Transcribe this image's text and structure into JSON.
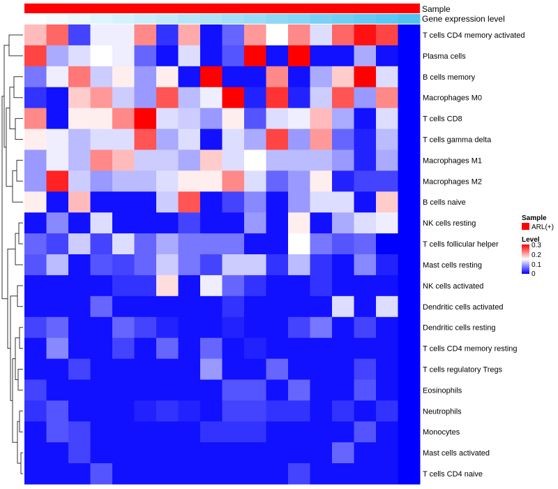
{
  "chart_data": {
    "type": "heatmap",
    "title": "",
    "xlabel": "",
    "ylabel": "",
    "n_samples": 18,
    "annotation_tracks": [
      {
        "name": "Sample",
        "color": "#ff0000"
      },
      {
        "name": "Gene expression level",
        "colors": [
          "#ffffff",
          "#52c3f1"
        ]
      }
    ],
    "rows": [
      {
        "label": "T cells CD4 memory activated",
        "values": [
          0.19,
          0.24,
          0.04,
          0.14,
          0.14,
          0.22,
          0.03,
          0.2,
          0.01,
          0.06,
          0.21,
          0.15,
          0.22,
          0.13,
          0.24,
          0.29,
          0.26,
          0.0
        ]
      },
      {
        "label": "Plasma cells",
        "values": [
          0.26,
          0.1,
          0.13,
          0.15,
          0.14,
          0.06,
          0.01,
          0.13,
          0.01,
          0.05,
          0.3,
          0.01,
          0.3,
          0.01,
          0.01,
          0.1,
          0.01,
          0.0
        ]
      },
      {
        "label": "B cells memory",
        "values": [
          0.07,
          0.14,
          0.23,
          0.12,
          0.16,
          0.09,
          0.16,
          0.01,
          0.3,
          0.01,
          0.01,
          0.22,
          0.01,
          0.1,
          0.18,
          0.3,
          0.13,
          0.0
        ]
      },
      {
        "label": "Macrophages M0",
        "values": [
          0.03,
          0.01,
          0.18,
          0.21,
          0.12,
          0.09,
          0.25,
          0.11,
          0.14,
          0.3,
          0.02,
          0.27,
          0.02,
          0.12,
          0.25,
          0.09,
          0.22,
          0.0
        ]
      },
      {
        "label": "T cells CD8",
        "values": [
          0.22,
          0.01,
          0.16,
          0.16,
          0.22,
          0.3,
          0.13,
          0.12,
          0.09,
          0.16,
          0.05,
          0.13,
          0.14,
          0.19,
          0.1,
          0.01,
          0.13,
          0.0
        ]
      },
      {
        "label": "T cells gamma delta",
        "values": [
          0.16,
          0.14,
          0.11,
          0.13,
          0.13,
          0.25,
          0.1,
          0.13,
          0.01,
          0.13,
          0.1,
          0.26,
          0.09,
          0.21,
          0.06,
          0.02,
          0.11,
          0.0
        ]
      },
      {
        "label": "Macrophages M1",
        "values": [
          0.09,
          0.14,
          0.11,
          0.22,
          0.19,
          0.12,
          0.12,
          0.1,
          0.18,
          0.13,
          0.15,
          0.11,
          0.11,
          0.11,
          0.09,
          0.02,
          0.1,
          0.0
        ]
      },
      {
        "label": "Macrophages M2",
        "values": [
          0.09,
          0.28,
          0.12,
          0.09,
          0.11,
          0.11,
          0.13,
          0.16,
          0.16,
          0.22,
          0.13,
          0.06,
          0.09,
          0.16,
          0.02,
          0.04,
          0.04,
          0.0
        ]
      },
      {
        "label": "B cells naive",
        "values": [
          0.16,
          0.01,
          0.19,
          0.01,
          0.01,
          0.01,
          0.12,
          0.25,
          0.01,
          0.04,
          0.08,
          0.01,
          0.09,
          0.13,
          0.13,
          0.01,
          0.18,
          0.0
        ]
      },
      {
        "label": "NK cells resting",
        "values": [
          0.01,
          0.08,
          0.01,
          0.13,
          0.01,
          0.01,
          0.01,
          0.04,
          0.01,
          0.01,
          0.09,
          0.01,
          0.16,
          0.01,
          0.1,
          0.13,
          0.14,
          0.0
        ]
      },
      {
        "label": "T cells follicular helper",
        "values": [
          0.06,
          0.04,
          0.12,
          0.04,
          0.13,
          0.06,
          0.1,
          0.07,
          0.07,
          0.07,
          0.01,
          0.01,
          0.15,
          0.07,
          0.05,
          0.06,
          0.0,
          0.0
        ]
      },
      {
        "label": "Mast cells resting",
        "values": [
          0.05,
          0.11,
          0.01,
          0.05,
          0.04,
          0.06,
          0.12,
          0.07,
          0.04,
          0.12,
          0.12,
          0.03,
          0.11,
          0.03,
          0.01,
          0.08,
          0.02,
          0.0
        ]
      },
      {
        "label": "NK cells activated",
        "values": [
          0.01,
          0.01,
          0.01,
          0.01,
          0.03,
          0.03,
          0.17,
          0.01,
          0.14,
          0.06,
          0.03,
          0.01,
          0.01,
          0.03,
          0.01,
          0.01,
          0.01,
          0.0
        ]
      },
      {
        "label": "Dendritic cells activated",
        "values": [
          0.01,
          0.01,
          0.01,
          0.06,
          0.01,
          0.01,
          0.01,
          0.01,
          0.01,
          0.03,
          0.01,
          0.01,
          0.01,
          0.01,
          0.13,
          0.01,
          0.13,
          0.0
        ]
      },
      {
        "label": "Dendritic cells resting",
        "values": [
          0.04,
          0.06,
          0.01,
          0.01,
          0.06,
          0.04,
          0.02,
          0.01,
          0.01,
          0.02,
          0.01,
          0.01,
          0.04,
          0.07,
          0.01,
          0.04,
          0.01,
          0.0
        ]
      },
      {
        "label": "T cells CD4 memory resting",
        "values": [
          0.01,
          0.08,
          0.01,
          0.01,
          0.04,
          0.01,
          0.06,
          0.01,
          0.06,
          0.01,
          0.02,
          0.01,
          0.01,
          0.01,
          0.01,
          0.01,
          0.01,
          0.0
        ]
      },
      {
        "label": "T cells regulatory  Tregs",
        "values": [
          0.01,
          0.01,
          0.04,
          0.01,
          0.01,
          0.01,
          0.01,
          0.01,
          0.09,
          0.01,
          0.01,
          0.06,
          0.01,
          0.01,
          0.01,
          0.04,
          0.01,
          0.0
        ]
      },
      {
        "label": "Eosinophils",
        "values": [
          0.04,
          0.01,
          0.01,
          0.01,
          0.01,
          0.01,
          0.01,
          0.01,
          0.01,
          0.05,
          0.05,
          0.01,
          0.06,
          0.01,
          0.01,
          0.05,
          0.01,
          0.0
        ]
      },
      {
        "label": "Neutrophils",
        "values": [
          0.03,
          0.05,
          0.01,
          0.01,
          0.01,
          0.02,
          0.03,
          0.02,
          0.01,
          0.04,
          0.04,
          0.03,
          0.03,
          0.01,
          0.03,
          0.01,
          0.03,
          0.0
        ]
      },
      {
        "label": "Monocytes",
        "values": [
          0.01,
          0.05,
          0.04,
          0.01,
          0.01,
          0.01,
          0.01,
          0.01,
          0.03,
          0.03,
          0.03,
          0.01,
          0.01,
          0.01,
          0.01,
          0.05,
          0.01,
          0.0
        ]
      },
      {
        "label": "Mast cells activated",
        "values": [
          0.01,
          0.01,
          0.04,
          0.01,
          0.01,
          0.01,
          0.01,
          0.01,
          0.01,
          0.01,
          0.01,
          0.01,
          0.01,
          0.01,
          0.06,
          0.01,
          0.01,
          0.0
        ]
      },
      {
        "label": "T cells CD4 naive",
        "values": [
          0.01,
          0.01,
          0.01,
          0.05,
          0.01,
          0.01,
          0.01,
          0.01,
          0.01,
          0.01,
          0.01,
          0.01,
          0.04,
          0.01,
          0.01,
          0.01,
          0.01,
          0.0
        ]
      }
    ],
    "color_scale": {
      "min": 0,
      "max": 0.3,
      "colors": [
        "#0000ff",
        "#ffffff",
        "#ff0000"
      ]
    },
    "legend": {
      "placement": "right",
      "sample_title": "Sample",
      "sample_entry": "ARL(+)",
      "sample_color": "#ff0000",
      "level_title": "Level",
      "ticks": [
        "0.3",
        "0.2",
        "0.1",
        "0"
      ]
    }
  }
}
